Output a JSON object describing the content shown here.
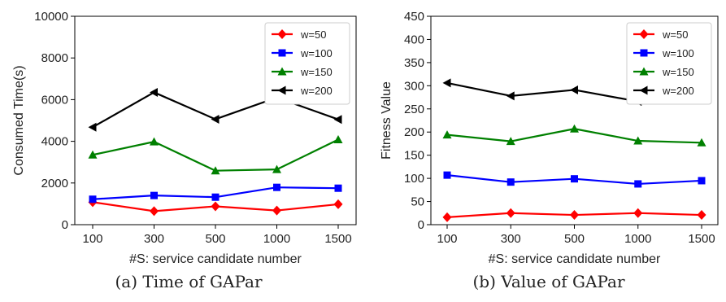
{
  "chart_data": [
    {
      "type": "line",
      "categories": [
        "100",
        "300",
        "500",
        "1000",
        "1500"
      ],
      "ylabel": "Consumed Time(s)",
      "xlabel": "#S: service candidate number",
      "ylim": [
        0,
        10000
      ],
      "yticks": [
        0,
        2000,
        4000,
        6000,
        8000,
        10000
      ],
      "grid": false,
      "legend_position": "top-right",
      "series": [
        {
          "name": "w=50",
          "color": "#ff0000",
          "marker": "diamond",
          "values": [
            1080,
            650,
            880,
            680,
            980
          ]
        },
        {
          "name": "w=100",
          "color": "#0000ff",
          "marker": "square",
          "values": [
            1220,
            1400,
            1320,
            1790,
            1750
          ]
        },
        {
          "name": "w=150",
          "color": "#008000",
          "marker": "triangle-up",
          "values": [
            3350,
            3980,
            2590,
            2650,
            4080
          ]
        },
        {
          "name": "w=200",
          "color": "#000000",
          "marker": "triangle-left",
          "values": [
            4680,
            6350,
            5060,
            6100,
            5050
          ]
        }
      ]
    },
    {
      "type": "line",
      "categories": [
        "100",
        "300",
        "500",
        "1000",
        "1500"
      ],
      "ylabel": "Fitness Value",
      "xlabel": "#S: service candidate number",
      "ylim": [
        0,
        450
      ],
      "yticks": [
        0,
        50,
        100,
        150,
        200,
        250,
        300,
        350,
        400,
        450
      ],
      "grid": false,
      "legend_position": "top-right",
      "series": [
        {
          "name": "w=50",
          "color": "#ff0000",
          "marker": "diamond",
          "values": [
            16,
            25,
            21,
            25,
            21
          ]
        },
        {
          "name": "w=100",
          "color": "#0000ff",
          "marker": "square",
          "values": [
            107,
            92,
            99,
            88,
            95
          ]
        },
        {
          "name": "w=150",
          "color": "#008000",
          "marker": "triangle-up",
          "values": [
            194,
            180,
            207,
            181,
            177
          ]
        },
        {
          "name": "w=200",
          "color": "#000000",
          "marker": "triangle-left",
          "values": [
            306,
            278,
            291,
            266,
            273
          ]
        }
      ]
    }
  ],
  "captions": {
    "a": "(a)  Time of GAPar",
    "b": "(b)  Value of GAPar"
  }
}
